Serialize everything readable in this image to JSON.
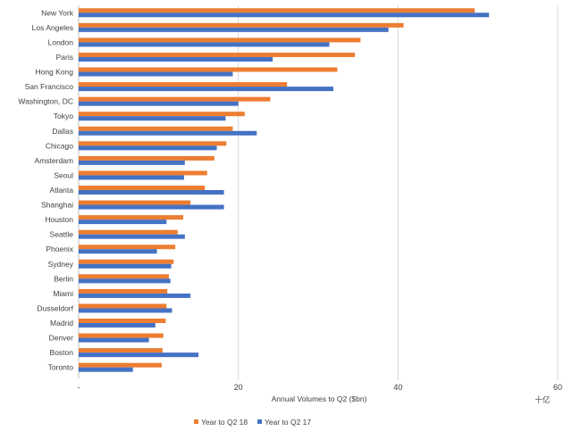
{
  "chart_data": {
    "type": "bar",
    "orientation": "horizontal",
    "categories": [
      "New York",
      "Los Angeles",
      "London",
      "Paris",
      "Hong Kong",
      "San Francisco",
      "Washington, DC",
      "Tokyo",
      "Dallas",
      "Chicago",
      "Amsterdam",
      "Seoul",
      "Atlanta",
      "Shanghai",
      "Houston",
      "Seattle",
      "Phoenix",
      "Sydney",
      "Berlin",
      "Miami",
      "Dusseldorf",
      "Madrid",
      "Denver",
      "Boston",
      "Toronto"
    ],
    "series": [
      {
        "name": "Year to Q2 18",
        "color": "#ED7D31",
        "values": [
          49.6,
          40.7,
          35.3,
          34.6,
          32.4,
          26.1,
          24.0,
          20.8,
          19.3,
          18.5,
          17.0,
          16.1,
          15.8,
          14.0,
          13.1,
          12.4,
          12.1,
          11.9,
          11.3,
          11.1,
          11.0,
          10.9,
          10.6,
          10.5,
          10.4
        ]
      },
      {
        "name": "Year to Q2 17",
        "color": "#4472C4",
        "values": [
          51.4,
          38.8,
          31.4,
          24.3,
          19.3,
          31.9,
          20.0,
          18.4,
          22.3,
          17.3,
          13.3,
          13.2,
          18.2,
          18.2,
          11.0,
          13.3,
          9.8,
          11.6,
          11.5,
          14.0,
          11.7,
          9.6,
          8.8,
          15.0,
          6.8
        ]
      }
    ],
    "xlabel": "Annual Volumes to Q2 ($bn)",
    "unit_note": "十亿",
    "xlim": [
      0,
      60
    ],
    "xticks": [
      {
        "value": 0,
        "label": "-"
      },
      {
        "value": 20,
        "label": "20"
      },
      {
        "value": 40,
        "label": "40"
      },
      {
        "value": 60,
        "label": "60"
      }
    ],
    "grid": true,
    "legend_position": "bottom"
  }
}
